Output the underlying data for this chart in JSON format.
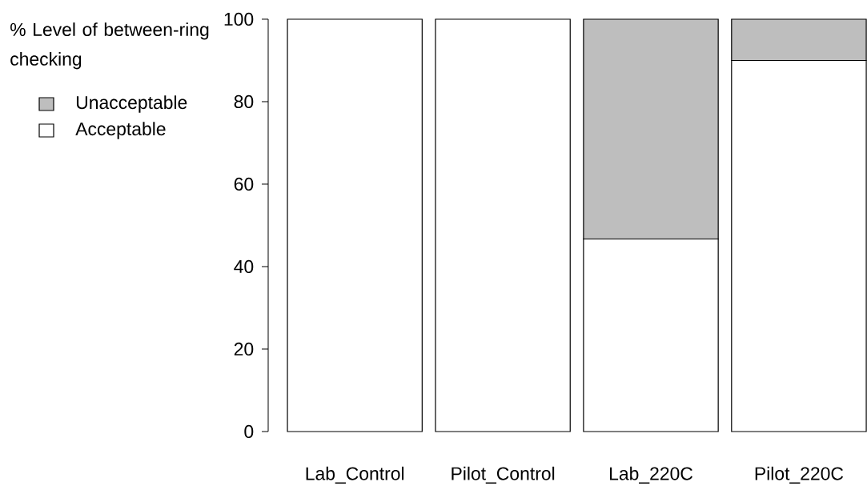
{
  "chart_data": {
    "type": "bar",
    "stacked": true,
    "legend": "left",
    "legend_title": "% Level of between-ring checking",
    "categories": [
      "Lab_Control",
      "Pilot_Control",
      "Lab_220C",
      "Pilot_220C"
    ],
    "series": [
      {
        "name": "Acceptable",
        "color": "#ffffff",
        "values": [
          100,
          100,
          46.7,
          90
        ]
      },
      {
        "name": "Unacceptable",
        "color": "#bebebe",
        "values": [
          0,
          0,
          53.3,
          10
        ]
      }
    ],
    "ylim": [
      0,
      100
    ],
    "yticks": [
      0,
      20,
      40,
      60,
      80,
      100
    ]
  }
}
